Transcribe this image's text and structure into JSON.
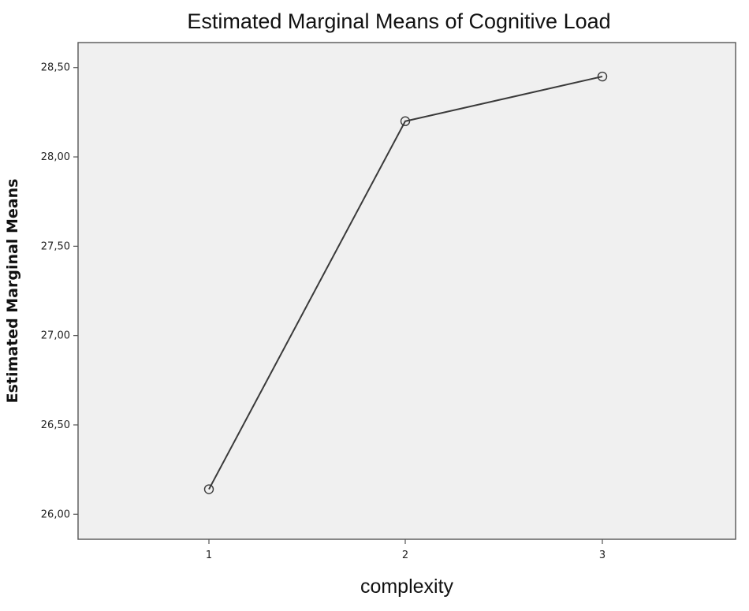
{
  "chart_data": {
    "type": "line",
    "title": "Estimated Marginal Means of Cognitive Load",
    "xlabel": "complexity",
    "ylabel": "Estimated Marginal Means",
    "categories": [
      "1",
      "2",
      "3"
    ],
    "series": [
      {
        "values": [
          26.14,
          28.2,
          28.45
        ]
      }
    ],
    "ylim": [
      25.86,
      28.64
    ],
    "yticks": [
      26.0,
      26.5,
      27.0,
      27.5,
      28.0,
      28.5
    ],
    "ytick_labels": [
      "26,00",
      "26,50",
      "27,00",
      "27,50",
      "28,00",
      "28,50"
    ],
    "grid": false,
    "legend": "none",
    "colors": {
      "background": "#f0f0f0",
      "line": "#3a3a3a",
      "frame": "#555555"
    }
  }
}
